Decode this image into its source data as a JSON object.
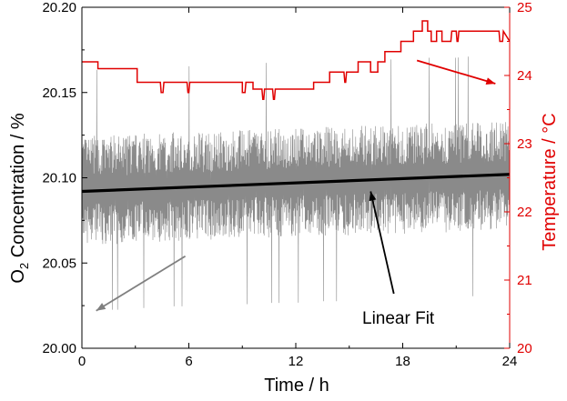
{
  "chart_data": {
    "type": "line",
    "xlabel": "Time / h",
    "ylabel_left_prefix": "O",
    "ylabel_left_sub": "2",
    "ylabel_left_rest": " Concentration / %",
    "ylabel_right": "Temperature / °C",
    "annotation": "Linear Fit",
    "xlim": [
      0,
      24
    ],
    "ylim_left": [
      20.0,
      20.2
    ],
    "ylim_right": [
      20,
      25
    ],
    "xticks": [
      "0",
      "6",
      "12",
      "18",
      "24"
    ],
    "yticks_left": [
      "20.00",
      "20.05",
      "20.10",
      "20.15",
      "20.20"
    ],
    "yticks_right": [
      "20",
      "21",
      "22",
      "23",
      "24",
      "25"
    ],
    "colors": {
      "o2_series": "#8a8a8a",
      "fit_line": "#000000",
      "temperature": "#e00000",
      "left_arrow": "#808080",
      "right_arrow": "#e00000",
      "right_axis": "#e00000"
    },
    "series": [
      {
        "axis": "left",
        "style": "noisy-line",
        "x": [
          0,
          1,
          2,
          3,
          4,
          5,
          6,
          7,
          8,
          9,
          10,
          11,
          12,
          13,
          14,
          15,
          16,
          17,
          18,
          19,
          20,
          21,
          22,
          23,
          24
        ],
        "values": [
          20.092,
          20.093,
          20.093,
          20.094,
          20.094,
          20.095,
          20.095,
          20.095,
          20.096,
          20.096,
          20.097,
          20.097,
          20.097,
          20.098,
          20.098,
          20.098,
          20.099,
          20.099,
          20.099,
          20.1,
          20.1,
          20.1,
          20.101,
          20.101,
          20.102
        ],
        "band": 0.032
      },
      {
        "axis": "left",
        "style": "fit",
        "x": [
          0,
          24
        ],
        "values": [
          20.092,
          20.102
        ]
      },
      {
        "axis": "right",
        "style": "step",
        "x": [
          0,
          0.9,
          0.9,
          3.1,
          3.1,
          4.4,
          4.45,
          4.55,
          4.6,
          5.9,
          5.95,
          6.0,
          6.05,
          9.0,
          9.0,
          9.15,
          9.2,
          9.6,
          9.6,
          10.1,
          10.15,
          10.2,
          10.25,
          10.7,
          10.75,
          10.8,
          10.85,
          13.0,
          13.0,
          13.9,
          13.9,
          14.7,
          14.75,
          14.8,
          14.85,
          15.5,
          15.5,
          16.2,
          16.2,
          16.6,
          16.6,
          17.0,
          17.0,
          17.9,
          17.9,
          18.6,
          18.6,
          19.1,
          19.1,
          19.4,
          19.4,
          19.6,
          19.6,
          19.9,
          19.9,
          20.2,
          20.2,
          20.7,
          20.75,
          21.0,
          21.05,
          21.1,
          21.15,
          23.4,
          23.45,
          23.6,
          23.65,
          24.0
        ],
        "values": [
          24.2,
          24.2,
          24.1,
          24.1,
          23.9,
          23.9,
          23.75,
          23.75,
          23.9,
          23.9,
          23.75,
          23.75,
          23.9,
          23.9,
          23.75,
          23.75,
          23.9,
          23.9,
          23.8,
          23.8,
          23.65,
          23.65,
          23.8,
          23.8,
          23.65,
          23.65,
          23.8,
          23.8,
          23.9,
          23.9,
          24.05,
          24.05,
          23.9,
          23.9,
          24.05,
          24.05,
          24.2,
          24.2,
          24.05,
          24.05,
          24.2,
          24.2,
          24.35,
          24.35,
          24.5,
          24.5,
          24.65,
          24.65,
          24.8,
          24.8,
          24.65,
          24.65,
          24.5,
          24.5,
          24.65,
          24.65,
          24.5,
          24.5,
          24.65,
          24.65,
          24.5,
          24.5,
          24.65,
          24.65,
          24.5,
          24.5,
          24.65,
          24.5
        ]
      }
    ],
    "arrows": [
      {
        "name": "o2-axis-arrow",
        "from": [
          5.8,
          20.054
        ],
        "to": [
          0.8,
          20.022
        ]
      },
      {
        "name": "temperature-axis-arrow",
        "from": [
          18.8,
          24.22
        ],
        "to": [
          23.2,
          23.88
        ]
      },
      {
        "name": "linear-fit-arrow",
        "from": [
          17.5,
          20.032
        ],
        "to": [
          16.2,
          20.092
        ]
      }
    ]
  }
}
